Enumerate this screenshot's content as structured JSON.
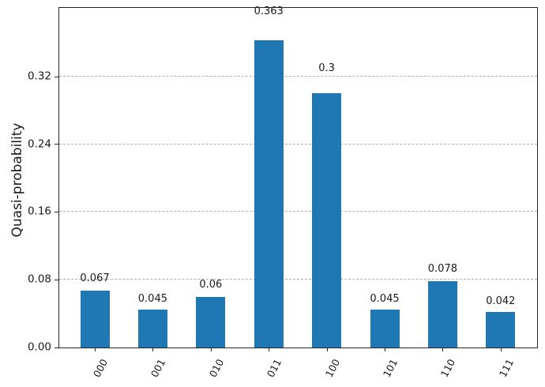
{
  "figure": {
    "background_color": "#ffffff"
  },
  "chart_data": {
    "type": "bar",
    "title": "",
    "xlabel": "",
    "ylabel": "Quasi-probability",
    "categories": [
      "000",
      "001",
      "010",
      "011",
      "100",
      "101",
      "110",
      "111"
    ],
    "values": [
      0.067,
      0.045,
      0.06,
      0.363,
      0.3,
      0.045,
      0.078,
      0.042
    ],
    "value_labels": [
      "0.067",
      "0.045",
      "0.06",
      "0.363",
      "0.3",
      "0.045",
      "0.078",
      "0.042"
    ],
    "ylim": [
      0,
      0.4
    ],
    "yticks": [
      {
        "value": 0.0,
        "label": "0.00"
      },
      {
        "value": 0.08,
        "label": "0.08"
      },
      {
        "value": 0.16,
        "label": "0.16"
      },
      {
        "value": 0.24,
        "label": "0.24"
      },
      {
        "value": 0.32,
        "label": "0.32"
      }
    ],
    "grid": {
      "axis": "y",
      "style": "dashed",
      "color": "#b3aab3",
      "on": true
    },
    "bar_color": "#1f77b4",
    "spine_color": "#262626",
    "text_color": "#1a1a1a",
    "x_tick_rotation_deg": -62
  }
}
